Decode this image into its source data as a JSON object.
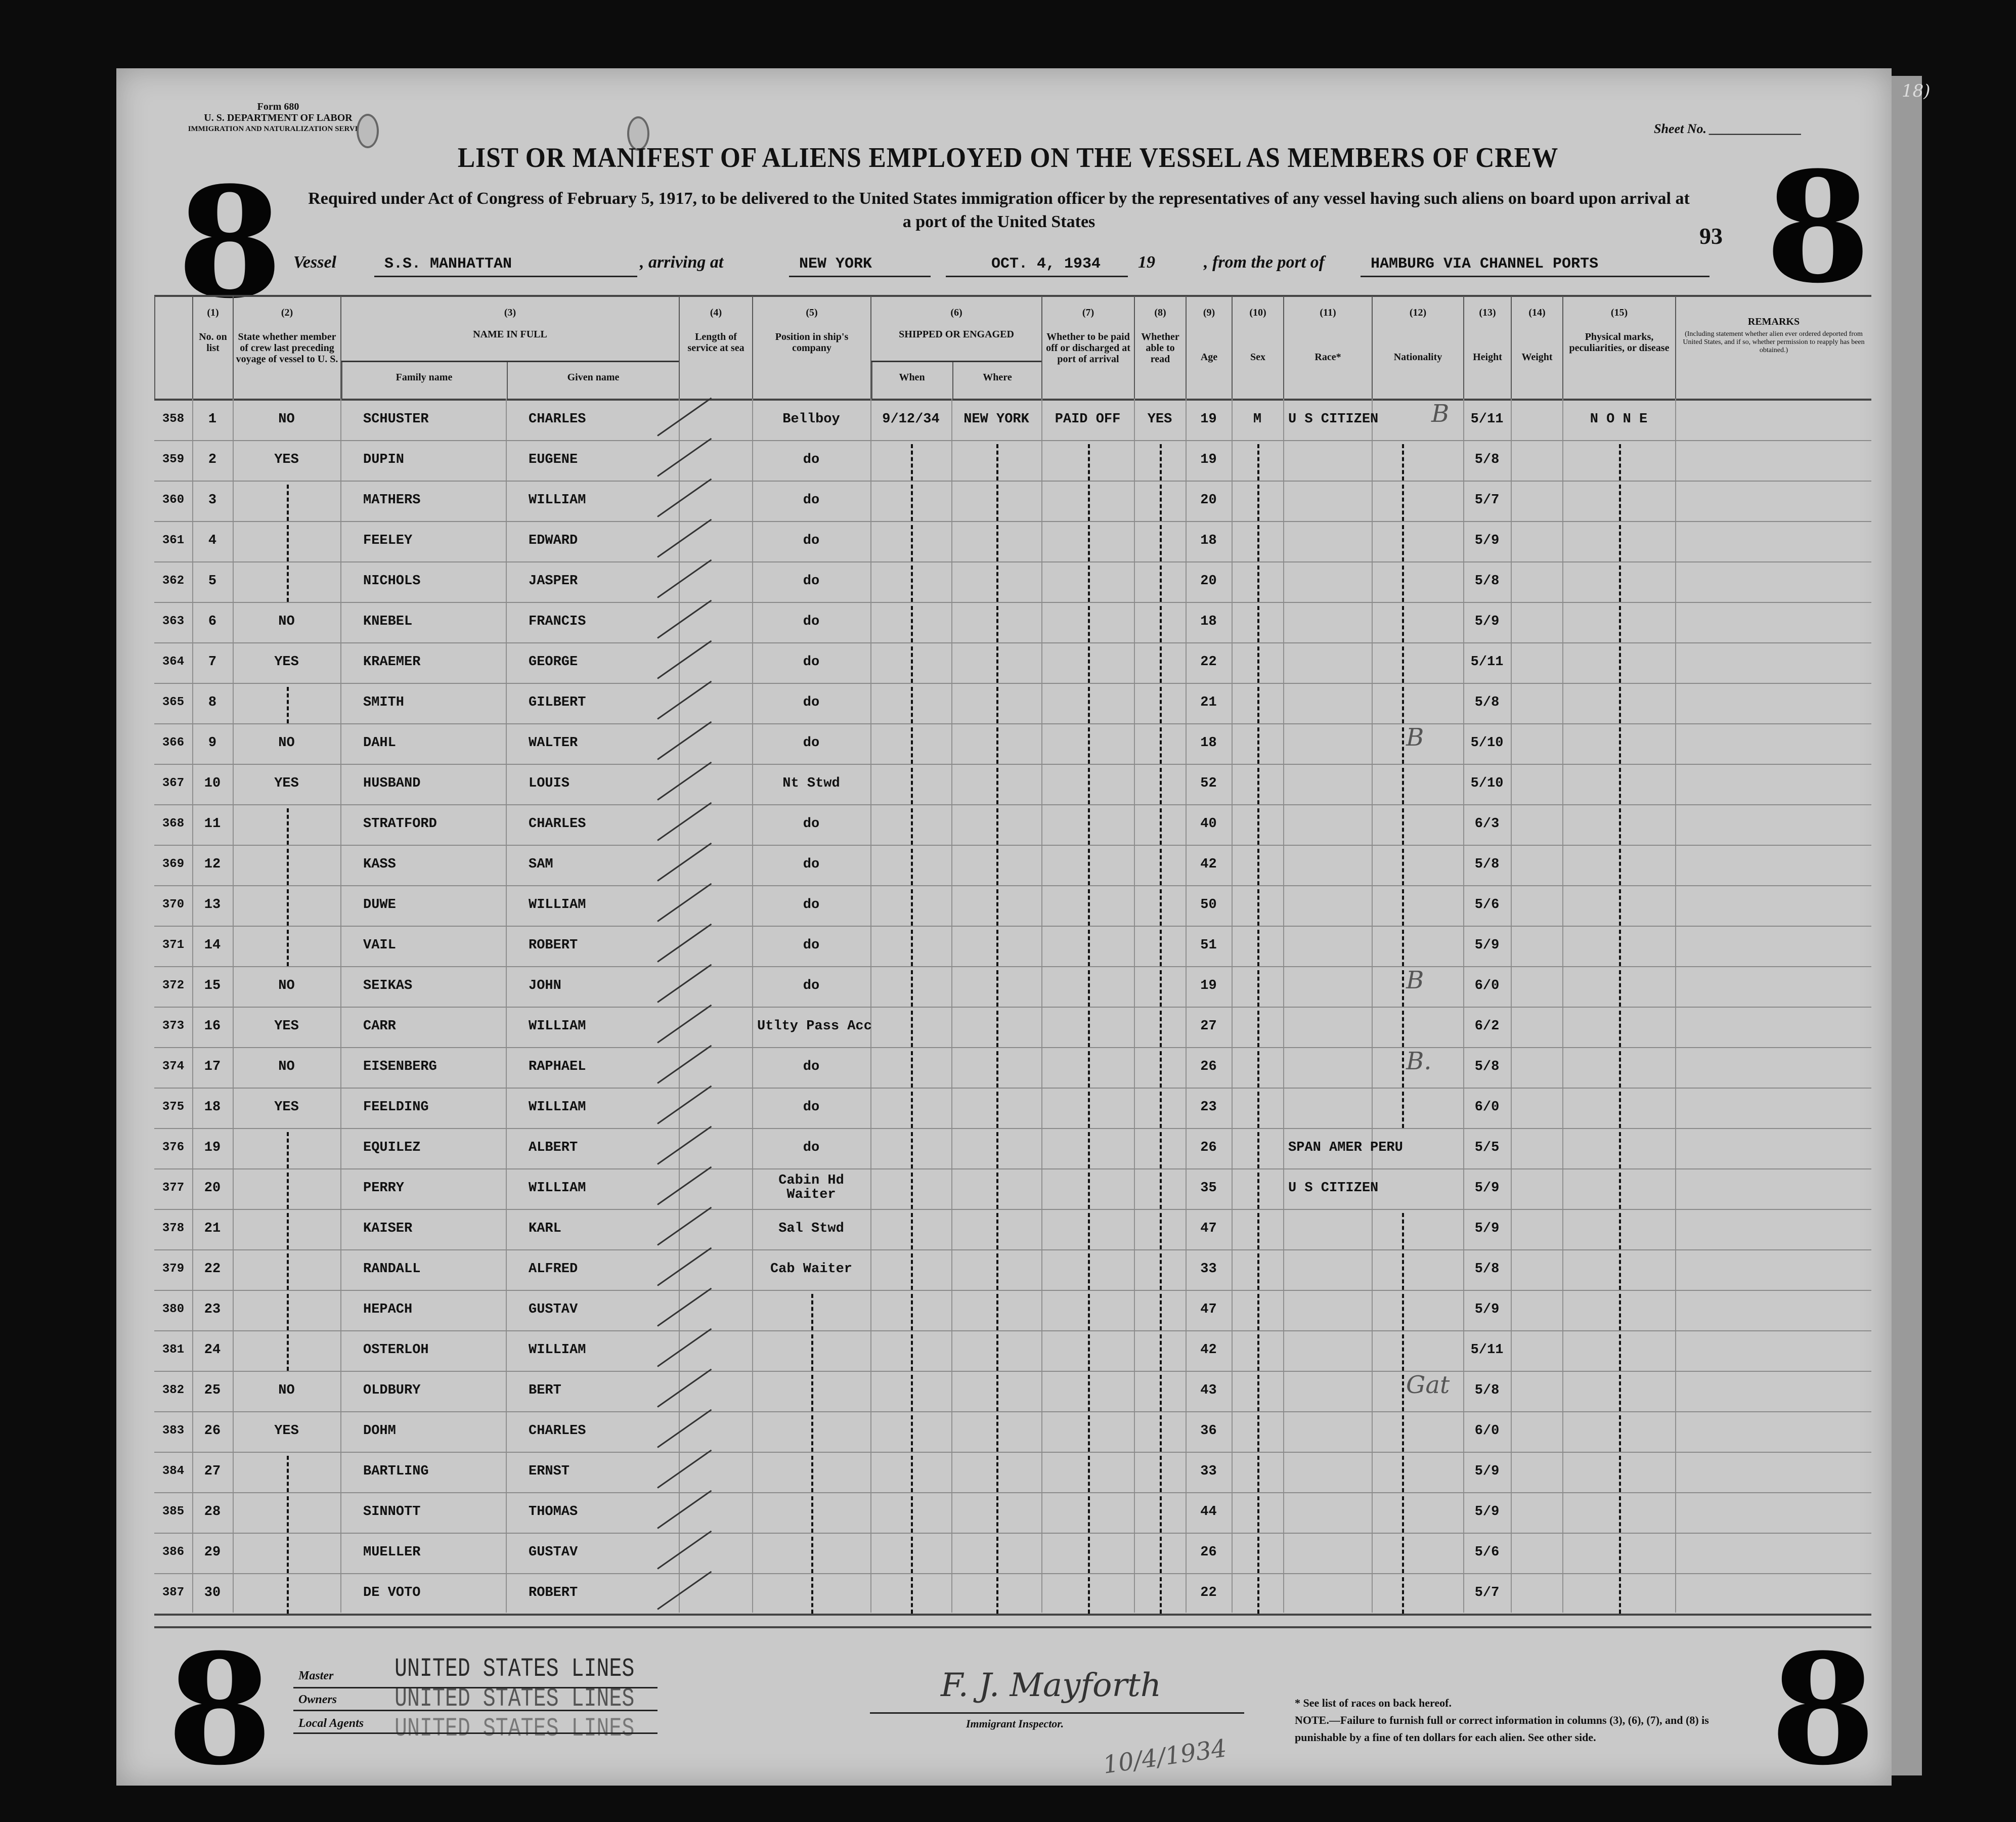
{
  "form": {
    "form_number": "Form 680",
    "department": "U. S. DEPARTMENT OF LABOR",
    "service": "IMMIGRATION AND NATURALIZATION SERVICE",
    "sheet_label": "Sheet No.",
    "title": "LIST OR MANIFEST OF ALIENS EMPLOYED ON THE VESSEL AS MEMBERS OF CREW",
    "subtitle": "Required under Act of Congress of February 5, 1917, to be delivered to the United States immigration officer by the representatives of any vessel having such aliens on board upon arrival at a port of the United States",
    "page_number": "93",
    "corner_stamp": "8",
    "corner_note": "18)"
  },
  "voyage": {
    "vessel_label": "Vessel",
    "vessel": "S.S. MANHATTAN",
    "arriving_label": ", arriving at",
    "arriving_at": "NEW YORK",
    "date": "OCT. 4, 1934",
    "year_label": "19",
    "from_label": ", from the port of",
    "from_port": "HAMBURG VIA CHANNEL PORTS"
  },
  "columns": {
    "c1": {
      "num": "(1)",
      "label": "No. on list"
    },
    "c2": {
      "num": "(2)",
      "label": "State whether member of crew last preceding voyage of vessel to U. S."
    },
    "c3": {
      "num": "(3)",
      "label": "NAME IN FULL",
      "family": "Family name",
      "given": "Given name"
    },
    "c4": {
      "num": "(4)",
      "label": "Length of service at sea"
    },
    "c5": {
      "num": "(5)",
      "label": "Position in ship's company"
    },
    "c6": {
      "num": "(6)",
      "label": "SHIPPED OR ENGAGED",
      "when": "When",
      "where": "Where"
    },
    "c7": {
      "num": "(7)",
      "label": "Whether to be paid off or discharged at port of arrival"
    },
    "c8": {
      "num": "(8)",
      "label": "Whether able to read"
    },
    "c9": {
      "num": "(9)",
      "label": "Age"
    },
    "c10": {
      "num": "(10)",
      "label": "Sex"
    },
    "c11": {
      "num": "(11)",
      "label": "Race*"
    },
    "c12": {
      "num": "(12)",
      "label": "Nationality"
    },
    "c13": {
      "num": "(13)",
      "label": "Height"
    },
    "c14": {
      "num": "(14)",
      "label": "Weight"
    },
    "c15": {
      "num": "(15)",
      "label": "Physical marks, peculiarities, or disease"
    },
    "remarks": {
      "label": "REMARKS",
      "detail": "(Including statement whether alien ever ordered deported from United States, and if so, whether permission to reapply has been obtained.)"
    }
  },
  "rows": [
    {
      "line": "358",
      "no": "1",
      "prev": "NO",
      "family": "SCHUSTER",
      "given": "CHARLES",
      "position": "Bellboy",
      "when": "9/12/34",
      "where": "NEW YORK",
      "paid": "PAID OFF",
      "read": "YES",
      "age": "19",
      "sex": "M",
      "race": "U S CITIZEN",
      "height": "5/11",
      "marks": "N O N E",
      "hand": "B"
    },
    {
      "line": "359",
      "no": "2",
      "prev": "YES",
      "family": "DUPIN",
      "given": "EUGENE",
      "position": "do",
      "age": "19",
      "height": "5/8"
    },
    {
      "line": "360",
      "no": "3",
      "family": "MATHERS",
      "given": "WILLIAM",
      "position": "do",
      "age": "20",
      "height": "5/7"
    },
    {
      "line": "361",
      "no": "4",
      "family": "FEELEY",
      "given": "EDWARD",
      "position": "do",
      "age": "18",
      "height": "5/9"
    },
    {
      "line": "362",
      "no": "5",
      "family": "NICHOLS",
      "given": "JASPER",
      "position": "do",
      "age": "20",
      "height": "5/8"
    },
    {
      "line": "363",
      "no": "6",
      "prev": "NO",
      "family": "KNEBEL",
      "given": "FRANCIS",
      "position": "do",
      "age": "18",
      "height": "5/9"
    },
    {
      "line": "364",
      "no": "7",
      "prev": "YES",
      "family": "KRAEMER",
      "given": "GEORGE",
      "position": "do",
      "age": "22",
      "height": "5/11"
    },
    {
      "line": "365",
      "no": "8",
      "family": "SMITH",
      "given": "GILBERT",
      "position": "do",
      "age": "21",
      "height": "5/8"
    },
    {
      "line": "366",
      "no": "9",
      "prev": "NO",
      "family": "DAHL",
      "given": "WALTER",
      "position": "do",
      "age": "18",
      "height": "5/10",
      "hand": "B"
    },
    {
      "line": "367",
      "no": "10",
      "prev": "YES",
      "family": "HUSBAND",
      "given": "LOUIS",
      "position": "Nt Stwd",
      "age": "52",
      "height": "5/10"
    },
    {
      "line": "368",
      "no": "11",
      "family": "STRATFORD",
      "given": "CHARLES",
      "position": "do",
      "age": "40",
      "height": "6/3"
    },
    {
      "line": "369",
      "no": "12",
      "family": "KASS",
      "given": "SAM",
      "position": "do",
      "age": "42",
      "height": "5/8"
    },
    {
      "line": "370",
      "no": "13",
      "family": "DUWE",
      "given": "WILLIAM",
      "position": "do",
      "age": "50",
      "height": "5/6"
    },
    {
      "line": "371",
      "no": "14",
      "family": "VAIL",
      "given": "ROBERT",
      "position": "do",
      "age": "51",
      "height": "5/9"
    },
    {
      "line": "372",
      "no": "15",
      "prev": "NO",
      "family": "SEIKAS",
      "given": "JOHN",
      "position": "do",
      "age": "19",
      "height": "6/0",
      "hand": "B"
    },
    {
      "line": "373",
      "no": "16",
      "prev": "YES",
      "family": "CARR",
      "given": "WILLIAM",
      "position": "Utlty Pass Acc",
      "age": "27",
      "height": "6/2"
    },
    {
      "line": "374",
      "no": "17",
      "prev": "NO",
      "family": "EISENBERG",
      "given": "RAPHAEL",
      "position": "do",
      "age": "26",
      "height": "5/8",
      "hand": "B."
    },
    {
      "line": "375",
      "no": "18",
      "prev": "YES",
      "family": "FEELDING",
      "given": "WILLIAM",
      "position": "do",
      "age": "23",
      "height": "6/0"
    },
    {
      "line": "376",
      "no": "19",
      "family": "EQUILEZ",
      "given": "ALBERT",
      "position": "do",
      "age": "26",
      "race": "SPAN AMER PERU",
      "height": "5/5"
    },
    {
      "line": "377",
      "no": "20",
      "family": "PERRY",
      "given": "WILLIAM",
      "position": "Cabin Hd Waiter",
      "age": "35",
      "race": "U S CITIZEN",
      "height": "5/9"
    },
    {
      "line": "378",
      "no": "21",
      "family": "KAISER",
      "given": "KARL",
      "position": "Sal Stwd",
      "age": "47",
      "height": "5/9"
    },
    {
      "line": "379",
      "no": "22",
      "family": "RANDALL",
      "given": "ALFRED",
      "position": "Cab Waiter",
      "age": "33",
      "height": "5/8"
    },
    {
      "line": "380",
      "no": "23",
      "family": "HEPACH",
      "given": "GUSTAV",
      "age": "47",
      "height": "5/9"
    },
    {
      "line": "381",
      "no": "24",
      "family": "OSTERLOH",
      "given": "WILLIAM",
      "age": "42",
      "height": "5/11"
    },
    {
      "line": "382",
      "no": "25",
      "prev": "NO",
      "family": "OLDBURY",
      "given": "BERT",
      "age": "43",
      "height": "5/8",
      "hand": "Gat"
    },
    {
      "line": "383",
      "no": "26",
      "prev": "YES",
      "family": "DOHM",
      "given": "CHARLES",
      "age": "36",
      "height": "6/0"
    },
    {
      "line": "384",
      "no": "27",
      "family": "BARTLING",
      "given": "ERNST",
      "age": "33",
      "height": "5/9"
    },
    {
      "line": "385",
      "no": "28",
      "family": "SINNOTT",
      "given": "THOMAS",
      "age": "44",
      "height": "5/9"
    },
    {
      "line": "386",
      "no": "29",
      "family": "MUELLER",
      "given": "GUSTAV",
      "age": "26",
      "height": "5/6"
    },
    {
      "line": "387",
      "no": "30",
      "family": "DE VOTO",
      "given": "ROBERT",
      "age": "22",
      "height": "5/7"
    }
  ],
  "footer": {
    "stamp_line": "UNITED STATES LINES",
    "master_label": "Master",
    "owners_label": "Owners",
    "agents_label": "Local Agents",
    "inspector_label": "Immigrant Inspector.",
    "signature": "F. J. Mayforth",
    "signed_date": "10/4/1934",
    "race_note": "* See list of races on back hereof.",
    "fine_note": "NOTE.—Failure to furnish full or correct information in columns (3), (6), (7), and (8) is punishable by a fine of ten dollars for each alien. See other side."
  }
}
